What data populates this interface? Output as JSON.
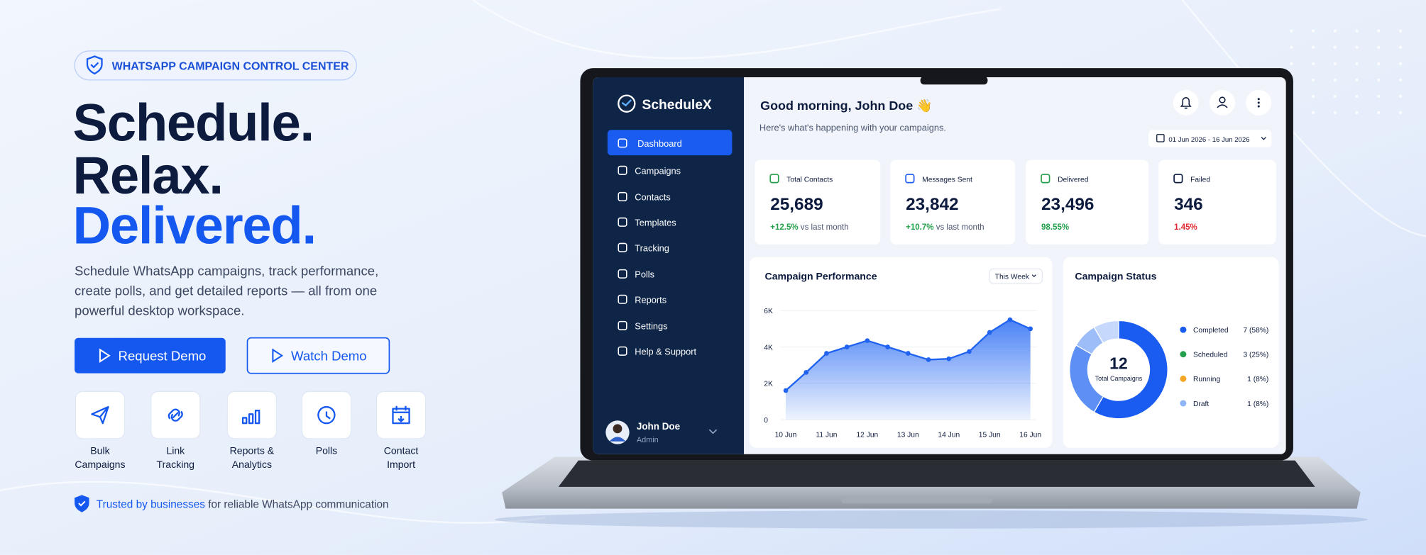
{
  "hero": {
    "badge": "WHATSAPP CAMPAIGN CONTROL CENTER",
    "headline": [
      "Schedule.",
      "Relax.",
      "Delivered."
    ],
    "description": [
      "Schedule WhatsApp campaigns, track performance,",
      "create polls, and get detailed reports — all from one",
      "powerful desktop workspace."
    ],
    "buttons": [
      "Request Demo",
      "Watch Demo"
    ],
    "features": [
      [
        "Bulk",
        "Campaigns"
      ],
      [
        "Link",
        "Tracking"
      ],
      [
        "Reports &",
        "Analytics"
      ],
      [
        "Polls"
      ],
      [
        "Contact",
        "Import"
      ]
    ],
    "trust": {
      "highlight": "Trusted by businesses",
      "text": "for reliable WhatsApp communication"
    }
  },
  "app": {
    "brand": "ScheduleX",
    "nav": [
      "Dashboard",
      "Campaigns",
      "Contacts",
      "Templates",
      "Tracking",
      "Polls",
      "Reports",
      "Settings",
      "Help & Support"
    ],
    "user": {
      "name": "John Doe",
      "role": "Admin"
    },
    "greeting": "Good morning, John Doe 👋",
    "subtitle": "Here's what's happening with your campaigns.",
    "date_range": "01 Jun 2026 - 16 Jun 2026",
    "stats": [
      {
        "label": "Total Contacts",
        "value": "25,689",
        "change": "+12.5%",
        "note": "vs last month"
      },
      {
        "label": "Messages Sent",
        "value": "23,842",
        "change": "+10.7%",
        "note": "vs last month"
      },
      {
        "label": "Delivered",
        "value": "23,496",
        "change": "98.55%"
      },
      {
        "label": "Failed",
        "value": "346",
        "change": "1.45%"
      }
    ]
  },
  "chart_data": [
    {
      "type": "area",
      "title": "Campaign Performance",
      "period": "This Week",
      "categories": [
        "10 Jun",
        null,
        "11 Jun",
        null,
        "12 Jun",
        null,
        "13 Jun",
        null,
        "14 Jun",
        null,
        "15 Jun",
        null,
        "16 Jun"
      ],
      "values": [
        1600,
        2600,
        3650,
        4000,
        4350,
        4000,
        3650,
        3300,
        3350,
        3750,
        4800,
        5500,
        5000
      ],
      "color": "#1f63f0",
      "ylim": [
        0,
        6000
      ],
      "yticks": [
        0,
        {
          "value": 2000,
          "label": "2K"
        },
        {
          "value": 4000,
          "label": "4K"
        },
        {
          "value": 6000,
          "label": "6K"
        }
      ]
    },
    {
      "type": "donut",
      "title": "Campaign Status",
      "total": 12,
      "total_label": "Total Campaigns",
      "categories": [
        "Completed",
        "Scheduled",
        "Running",
        "Draft"
      ],
      "values": [
        7,
        3,
        1,
        1
      ],
      "value_labels": [
        "7 (58%)",
        "3 (25%)",
        "1 (8%)",
        "1 (8%)"
      ],
      "colors": [
        "#1a5cf0",
        "#22a04b",
        "#f5a623",
        "#8fb4f7"
      ],
      "arc_colors": [
        "#1a5cf0",
        "#5d8ff5",
        "#9dbdf9",
        "#c6d9fc"
      ]
    }
  ]
}
